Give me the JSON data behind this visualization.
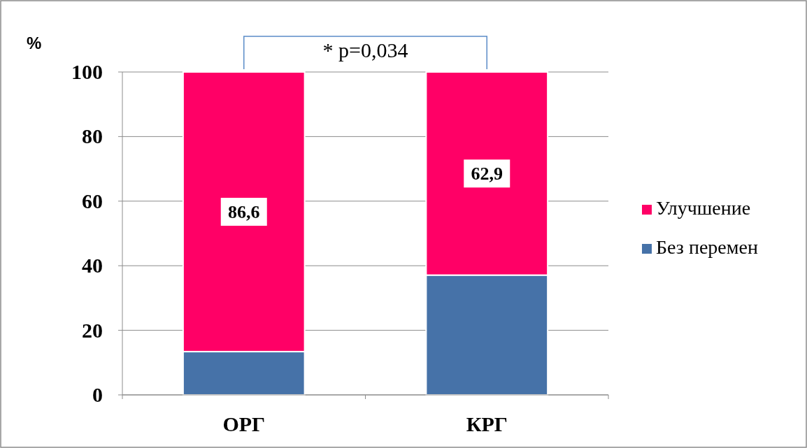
{
  "chart_data": {
    "type": "bar",
    "stacked": true,
    "ylabel": "%",
    "categories": [
      "ОРГ",
      "КРГ"
    ],
    "series": [
      {
        "name": "Без перемен",
        "color": "#4672a8",
        "values": [
          13.4,
          37.1
        ]
      },
      {
        "name": "Улучшение",
        "color": "#ff0066",
        "values": [
          86.6,
          62.9
        ],
        "value_labels": [
          "86,6",
          "62,9"
        ]
      }
    ],
    "ylim": [
      0,
      100
    ],
    "yticks": [
      0,
      20,
      40,
      60,
      80,
      100
    ],
    "grid": "y",
    "legend": "right",
    "annotations": [
      "* p=0,034"
    ]
  }
}
